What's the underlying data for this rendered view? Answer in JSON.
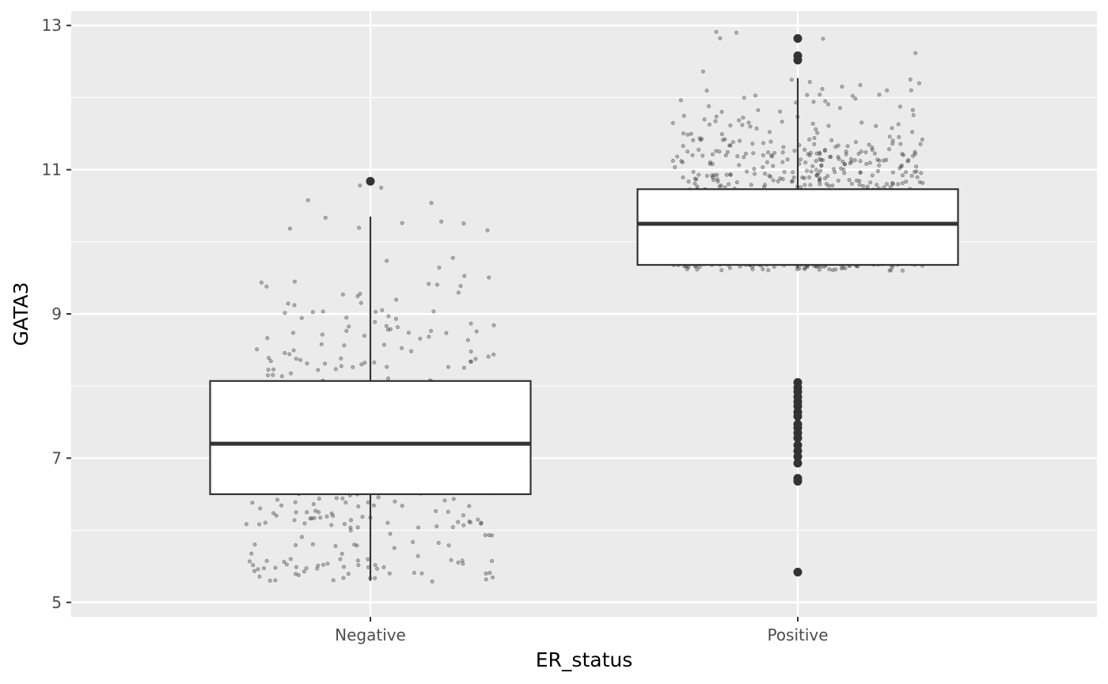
{
  "chart_data": {
    "type": "boxplot",
    "xlabel": "ER_status",
    "ylabel": "GATA3",
    "categories": [
      "Negative",
      "Positive"
    ],
    "ylim": [
      4.8,
      13.2
    ],
    "yticks": [
      5,
      7,
      9,
      11,
      13
    ],
    "y_minor_ticks": [
      6,
      8,
      10,
      12
    ],
    "grid": true,
    "jitter_overlay": true,
    "boxes": [
      {
        "category": "Negative",
        "whisker_low": 5.3,
        "q1": 6.5,
        "median": 7.2,
        "q3": 8.07,
        "whisker_high": 10.35,
        "outliers": [
          10.84
        ],
        "jitter_count": 400
      },
      {
        "category": "Positive",
        "whisker_low": 9.65,
        "q1": 9.68,
        "median": 10.25,
        "q3": 10.73,
        "whisker_high": 12.27,
        "outliers": [
          12.82,
          12.58,
          12.52,
          8.05,
          7.98,
          7.92,
          7.85,
          7.78,
          7.72,
          7.64,
          7.58,
          7.47,
          7.42,
          7.35,
          7.28,
          7.18,
          7.1,
          7.02,
          6.93,
          6.72,
          6.68,
          5.42
        ],
        "jitter_count": 1000
      }
    ],
    "colors": {
      "panel": "#ebebeb",
      "grid": "#ffffff",
      "box_fill": "#ffffff",
      "box_stroke": "#333333",
      "point": "#333333"
    }
  }
}
